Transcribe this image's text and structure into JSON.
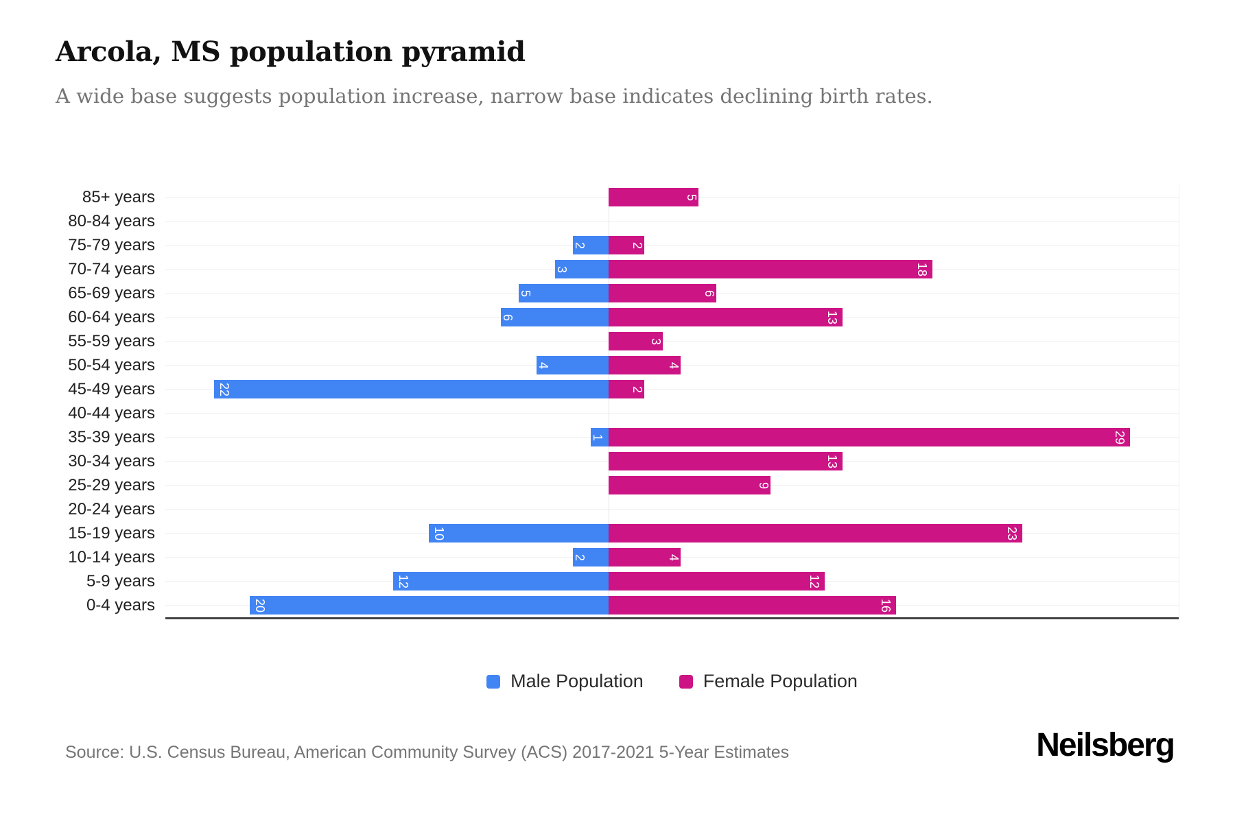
{
  "header": {
    "title": "Arcola, MS population pyramid",
    "subtitle": "A wide base suggests population increase, narrow base indicates declining birth rates."
  },
  "chart_data": {
    "type": "bar",
    "variant": "population-pyramid",
    "title": "Arcola, MS population pyramid",
    "categories": [
      "85+ years",
      "80-84 years",
      "75-79 years",
      "70-74 years",
      "65-69 years",
      "60-64 years",
      "55-59 years",
      "50-54 years",
      "45-49 years",
      "40-44 years",
      "35-39 years",
      "30-34 years",
      "25-29 years",
      "20-24 years",
      "15-19 years",
      "10-14 years",
      "5-9 years",
      "0-4 years"
    ],
    "series": [
      {
        "name": "Male Population",
        "color": "#4184F4",
        "values": [
          0,
          0,
          2,
          3,
          5,
          6,
          0,
          4,
          22,
          0,
          1,
          0,
          0,
          0,
          10,
          2,
          12,
          20
        ]
      },
      {
        "name": "Female Population",
        "color": "#CC1485",
        "values": [
          5,
          0,
          2,
          18,
          6,
          13,
          3,
          4,
          2,
          0,
          29,
          13,
          9,
          0,
          23,
          4,
          12,
          16
        ]
      }
    ],
    "axis": {
      "male_axis_max": 24.7,
      "female_axis_max": 31.7
    },
    "value_labels": "rotated-90-at-bar-end",
    "grid": true,
    "legend_position": "bottom",
    "xlabel": "",
    "ylabel": ""
  },
  "legend": {
    "male_label": "Male Population",
    "female_label": "Female Population"
  },
  "footer": {
    "source": "Source: U.S. Census Bureau, American Community Survey (ACS) 2017-2021 5-Year Estimates",
    "brand": "Neilsberg"
  }
}
